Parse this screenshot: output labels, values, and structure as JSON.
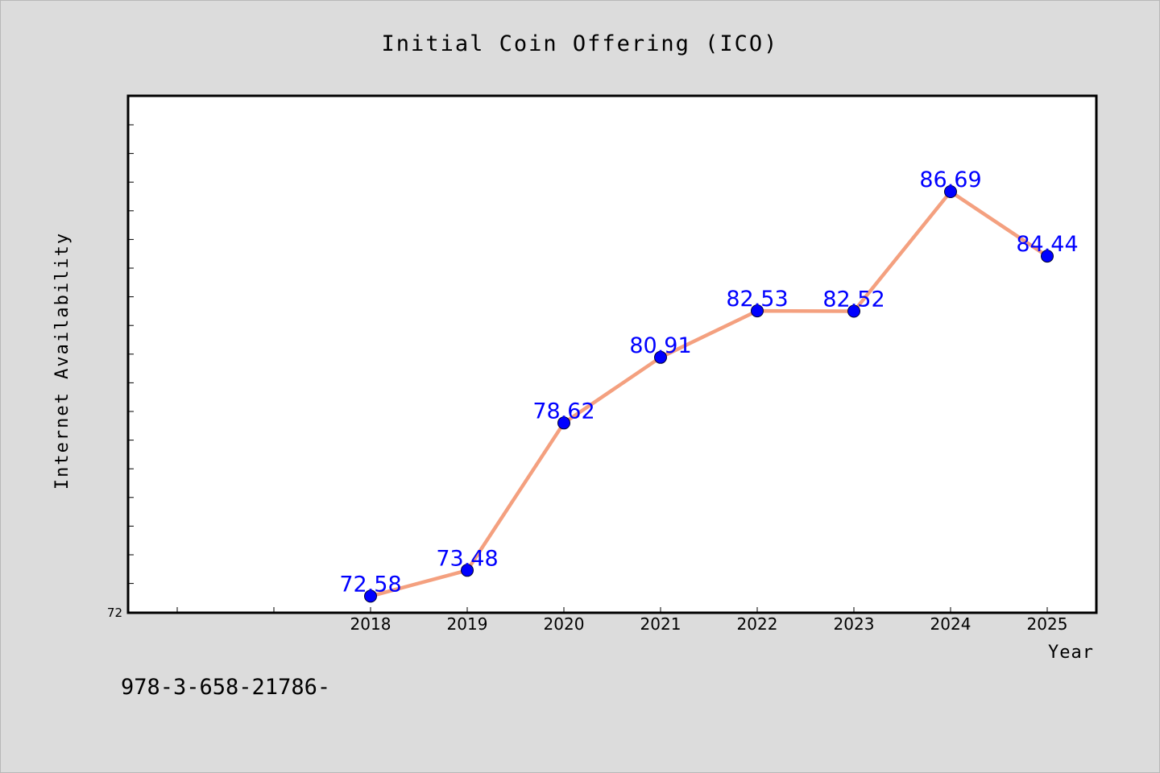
{
  "chart_data": {
    "type": "line",
    "title": "Initial Coin Offering (ICO)",
    "xlabel": "Year",
    "ylabel": "Internet Availability",
    "x": [
      "2018",
      "2019",
      "2020",
      "2021",
      "2022",
      "2023",
      "2024",
      "2025"
    ],
    "values": [
      72.58,
      73.48,
      78.62,
      80.91,
      82.53,
      82.52,
      86.69,
      84.44
    ],
    "data_labels": [
      "72.58",
      "73.48",
      "78.62",
      "80.91",
      "82.53",
      "82.52",
      "86.69",
      "84.44"
    ],
    "ylim": [
      72,
      90
    ],
    "ytick_labels": [
      "72"
    ],
    "grid": false,
    "colors": {
      "line": "#f4a07f",
      "marker": "#0000ff",
      "label": "#0000ff",
      "background": "#dcdcdc",
      "plot_area": "#ffffff"
    }
  },
  "footer_text": "978-3-658-21786-"
}
